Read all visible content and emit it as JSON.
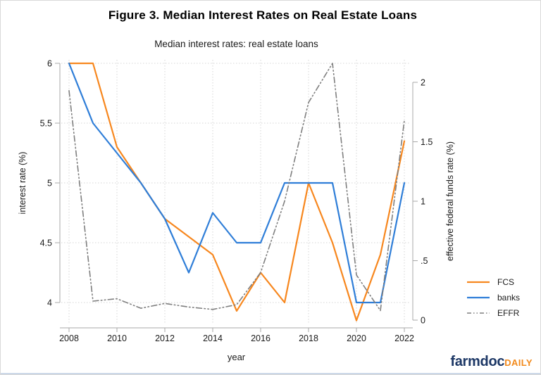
{
  "header": {
    "title": "Figure 3. Median Interest Rates on Real Estate Loans"
  },
  "chart_data": {
    "type": "line",
    "title": "Figure 3. Median Interest Rates on Real Estate Loans",
    "subtitle": "Median interest rates: real estate loans",
    "xlabel": "year",
    "ylabel": "interest rate (%)",
    "y2label": "effective federal funds rate (%)",
    "grid": true,
    "legend_position": "right-outside",
    "x": [
      2008,
      2009,
      2010,
      2011,
      2012,
      2013,
      2014,
      2015,
      2016,
      2017,
      2018,
      2019,
      2020,
      2021,
      2022
    ],
    "x_ticks": [
      2008,
      2010,
      2012,
      2014,
      2016,
      2018,
      2020,
      2022
    ],
    "ylim": [
      4,
      6
    ],
    "y_ticks": [
      4,
      4.5,
      5,
      5.5,
      6
    ],
    "y_tick_labels": [
      "4",
      "4.5",
      "5",
      "5.5",
      "6"
    ],
    "y2lim": [
      0,
      2
    ],
    "y2_ticks": [
      0,
      0.5,
      1,
      1.5,
      2
    ],
    "y2_tick_labels": [
      "0",
      ".5",
      "1",
      "1.5",
      "2"
    ],
    "series": [
      {
        "name": "FCS",
        "axis": "left",
        "color": "#f7871e",
        "style": "solid",
        "values": [
          6,
          6,
          5.3,
          5,
          4.7,
          4.55,
          4.4,
          3.93,
          4.25,
          4,
          5,
          4.5,
          3.85,
          4.4,
          5.35
        ]
      },
      {
        "name": "banks",
        "axis": "left",
        "color": "#2f7ed8",
        "style": "solid",
        "values": [
          6,
          5.5,
          5.25,
          5,
          4.7,
          4.25,
          4.75,
          4.5,
          4.5,
          5,
          5,
          5,
          4,
          4,
          5
        ]
      },
      {
        "name": "EFFR",
        "axis": "right",
        "color": "#7f7f7f",
        "style": "dash-dot",
        "values": [
          1.93,
          0.16,
          0.18,
          0.1,
          0.14,
          0.11,
          0.09,
          0.13,
          0.4,
          1,
          1.83,
          2.16,
          0.38,
          0.08,
          1.68
        ]
      }
    ]
  },
  "branding": {
    "name_primary": "farmdoc",
    "name_secondary": "DAILY",
    "primary_color": "#1d3866",
    "secondary_color": "#f28a1c"
  }
}
